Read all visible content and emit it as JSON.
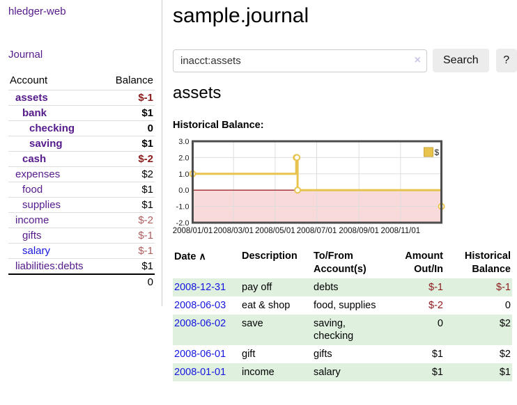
{
  "colors": {
    "link_purple": "#551a8b",
    "link_blue": "#1515e0",
    "negative_strong": "#8b1a1a",
    "negative_soft": "#b05d5d",
    "row_stripe_green": "#dff0df",
    "button_bg": "#ececec",
    "chart_line_gold": "#e8c44f",
    "chart_negative_fill": "#f9dada",
    "chart_zero_line": "#8b0000",
    "chart_border": "#4d4d4d",
    "grid_line": "#ddd"
  },
  "sidebar": {
    "brand": "hledger-web",
    "nav_journal": "Journal",
    "accounts": {
      "header_account": "Account",
      "header_balance": "Balance",
      "rows": [
        {
          "name": "assets",
          "balance": "$-1",
          "depth": 1,
          "bold": true,
          "color": "purple",
          "tone": "strong-neg"
        },
        {
          "name": "bank",
          "balance": "$1",
          "depth": 2,
          "bold": true,
          "color": "purple",
          "tone": "plain"
        },
        {
          "name": "checking",
          "balance": "0",
          "depth": 3,
          "bold": true,
          "color": "purple",
          "tone": "plain"
        },
        {
          "name": "saving",
          "balance": "$1",
          "depth": 3,
          "bold": true,
          "color": "purple",
          "tone": "plain"
        },
        {
          "name": "cash",
          "balance": "$-2",
          "depth": 2,
          "bold": true,
          "color": "purple",
          "tone": "strong-neg"
        },
        {
          "name": "expenses",
          "balance": "$2",
          "depth": 1,
          "bold": false,
          "color": "purple",
          "tone": "plain"
        },
        {
          "name": "food",
          "balance": "$1",
          "depth": 2,
          "bold": false,
          "color": "purple",
          "tone": "plain"
        },
        {
          "name": "supplies",
          "balance": "$1",
          "depth": 2,
          "bold": false,
          "color": "purple",
          "tone": "plain"
        },
        {
          "name": "income",
          "balance": "$-2",
          "depth": 1,
          "bold": false,
          "color": "purple",
          "tone": "soft-neg"
        },
        {
          "name": "gifts",
          "balance": "$-1",
          "depth": 2,
          "bold": false,
          "color": "purple",
          "tone": "soft-neg"
        },
        {
          "name": "salary",
          "balance": "$-1",
          "depth": 2,
          "bold": false,
          "color": "blue",
          "tone": "soft-neg"
        },
        {
          "name": "liabilities:debts",
          "balance": "$1",
          "depth": 1,
          "bold": false,
          "color": "purple",
          "tone": "plain"
        }
      ],
      "total": "0"
    }
  },
  "main": {
    "title": "sample.journal",
    "search": {
      "value": "inacct:assets",
      "clear_icon": "×",
      "search_button": "Search",
      "help_button": "?"
    },
    "account_heading": "assets",
    "chart_label": "Historical Balance:"
  },
  "chart_data": {
    "type": "line",
    "step": true,
    "title": "Historical Balance",
    "legend": {
      "label": "$",
      "position": "top-right"
    },
    "x_range": [
      "2008-01-01",
      "2008-12-31"
    ],
    "ylim": [
      -2,
      3
    ],
    "y_ticks": [
      "3.0",
      "2.0",
      "1.0",
      "0.0",
      "-1.0",
      "-2.0"
    ],
    "x_ticks": [
      {
        "date": "2008-01-01",
        "label": "2008/01/01"
      },
      {
        "date": "2008-03-01",
        "label": "2008/03/01"
      },
      {
        "date": "2008-05-01",
        "label": "2008/05/01"
      },
      {
        "date": "2008-07-01",
        "label": "2008/07/01"
      },
      {
        "date": "2008-09-01",
        "label": "2008/09/01"
      },
      {
        "date": "2008-11-01",
        "label": "2008/11/01"
      }
    ],
    "series": [
      {
        "name": "$",
        "points": [
          {
            "x": "2008-01-01",
            "y": 1
          },
          {
            "x": "2008-06-01",
            "y": 2
          },
          {
            "x": "2008-06-02",
            "y": 2
          },
          {
            "x": "2008-06-03",
            "y": 0
          },
          {
            "x": "2008-12-31",
            "y": -1
          }
        ]
      }
    ]
  },
  "register": {
    "headers": {
      "date": "Date",
      "sort_icon": "∧",
      "description": "Description",
      "tofrom": "To/From\nAccount(s)",
      "amount": "Amount\nOut/In",
      "balance": "Historical\nBalance"
    },
    "rows": [
      {
        "date": "2008-12-31",
        "description": "pay off",
        "accounts": "debts",
        "amount": "$-1",
        "amount_negative": true,
        "balance": "$-1",
        "balance_negative": true
      },
      {
        "date": "2008-06-03",
        "description": "eat & shop",
        "accounts": "food, supplies",
        "amount": "$-2",
        "amount_negative": true,
        "balance": "0",
        "balance_negative": false
      },
      {
        "date": "2008-06-02",
        "description": "save",
        "accounts": "saving, checking",
        "amount": "0",
        "amount_negative": false,
        "balance": "$2",
        "balance_negative": false
      },
      {
        "date": "2008-06-01",
        "description": "gift",
        "accounts": "gifts",
        "amount": "$1",
        "amount_negative": false,
        "balance": "$2",
        "balance_negative": false
      },
      {
        "date": "2008-01-01",
        "description": "income",
        "accounts": "salary",
        "amount": "$1",
        "amount_negative": false,
        "balance": "$1",
        "balance_negative": false
      }
    ]
  }
}
